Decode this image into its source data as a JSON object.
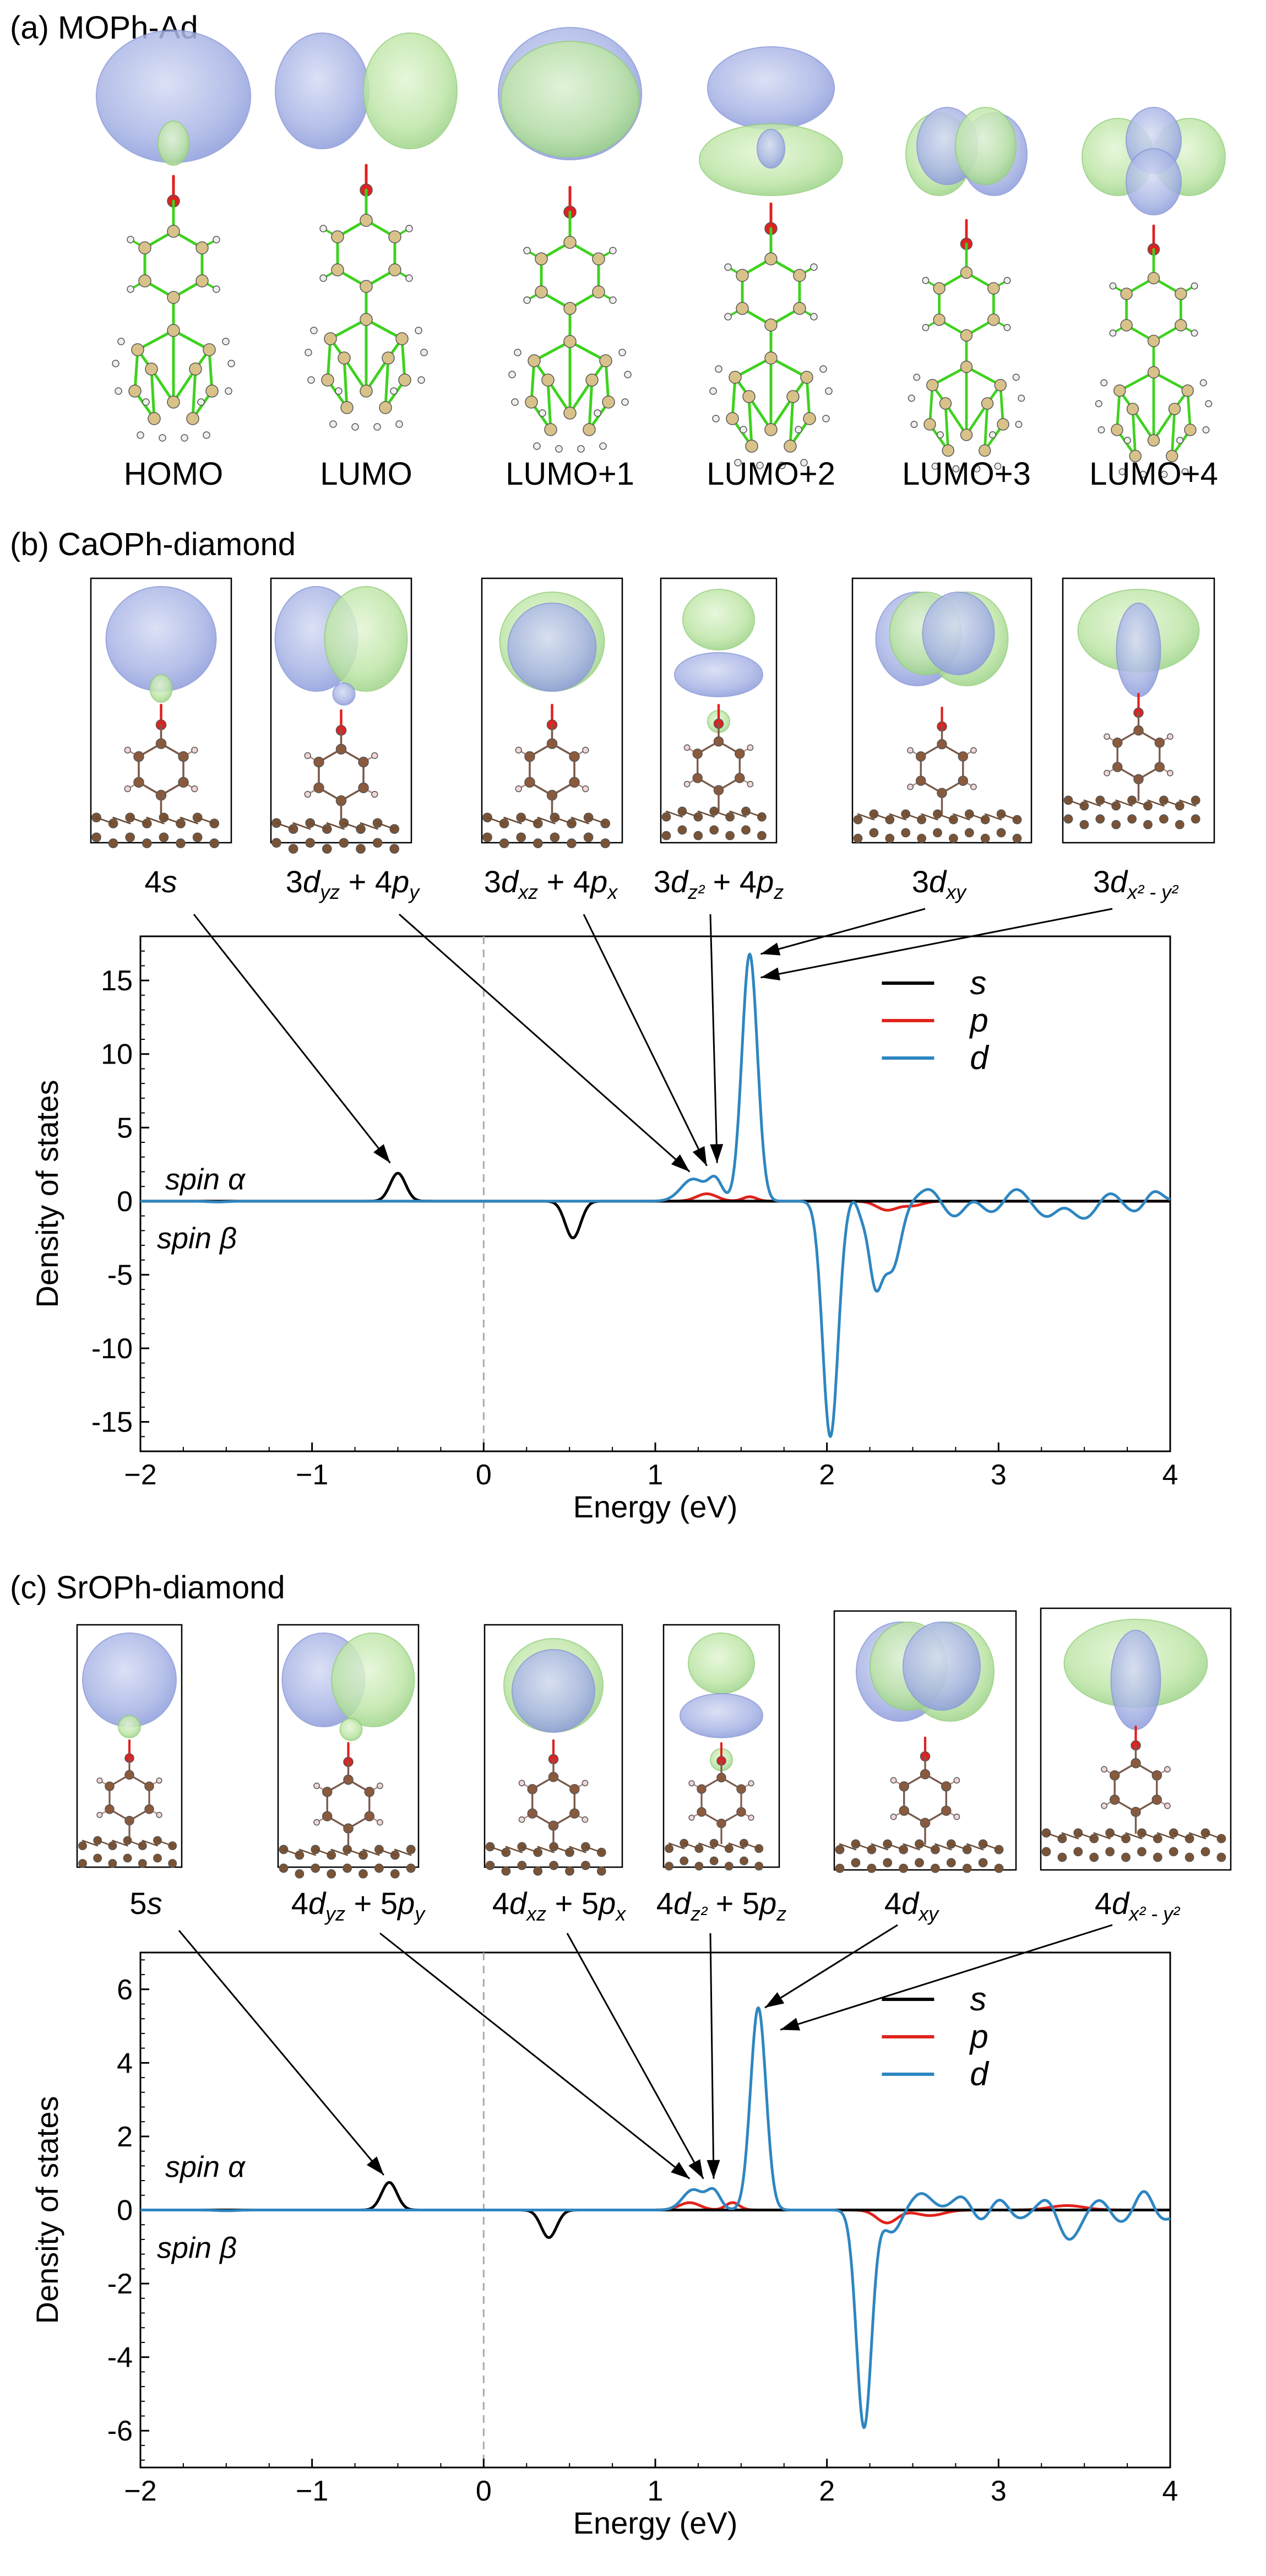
{
  "panel_a": {
    "title": "(a) MOPh-Ad",
    "labels": [
      "HOMO",
      "LUMO",
      "LUMO+1",
      "LUMO+2",
      "LUMO+3",
      "LUMO+4"
    ]
  },
  "panel_b": {
    "title": "(b) CaOPh-diamond",
    "labels": [
      {
        "main": "4",
        "sym": "s",
        "tail": ""
      },
      {
        "main": "3",
        "sym": "d",
        "sub": "yz",
        "plus": " + 4",
        "sym2": "p",
        "sub2": "y"
      },
      {
        "main": "3",
        "sym": "d",
        "sub": "xz",
        "plus": " + 4",
        "sym2": "p",
        "sub2": "x"
      },
      {
        "main": "3",
        "sym": "d",
        "sub": "z²",
        "plus": " + 4",
        "sym2": "p",
        "sub2": "z"
      },
      {
        "main": "3",
        "sym": "d",
        "sub": "xy"
      },
      {
        "main": "3",
        "sym": "d",
        "sub": "x² - y²"
      }
    ]
  },
  "panel_c": {
    "title": "(c) SrOPh-diamond",
    "labels": [
      {
        "main": "5",
        "sym": "s"
      },
      {
        "main": "4",
        "sym": "d",
        "sub": "yz",
        "plus": " + 5",
        "sym2": "p",
        "sub2": "y"
      },
      {
        "main": "4",
        "sym": "d",
        "sub": "xz",
        "plus": " + 5",
        "sym2": "p",
        "sub2": "x"
      },
      {
        "main": "4",
        "sym": "d",
        "sub": "z²",
        "plus": " + 5",
        "sym2": "p",
        "sub2": "z"
      },
      {
        "main": "4",
        "sym": "d",
        "sub": "xy"
      },
      {
        "main": "4",
        "sym": "d",
        "sub": "x² - y²"
      }
    ]
  },
  "chart_data": [
    {
      "type": "line",
      "xlabel": "Energy (eV)",
      "ylabel": "Density of states",
      "xlim": [
        -2,
        4
      ],
      "ylim": [
        -17,
        18
      ],
      "xticks": [
        -2,
        -1,
        0,
        1,
        2,
        3,
        4
      ],
      "yticks": [
        -15,
        -10,
        -5,
        0,
        5,
        10,
        15
      ],
      "ytick_labels": [
        "-15",
        "-10",
        "-5",
        "0",
        "5",
        "10",
        "15"
      ],
      "xtick_labels": [
        "−2",
        "−1",
        "0",
        "1",
        "2",
        "3",
        "4"
      ],
      "annotations": [
        "spin α",
        "spin β"
      ],
      "legend": [
        "s",
        "p",
        "d"
      ],
      "colors": {
        "s": "#000000",
        "p": "#e0231c",
        "d": "#2e86c1"
      },
      "series": [
        {
          "name": "s",
          "peaks": [
            [
              -0.5,
              1.9,
              0.045
            ],
            [
              0.52,
              -2.5,
              0.045
            ]
          ]
        },
        {
          "name": "p",
          "peaks": [
            [
              1.3,
              0.5,
              0.06
            ],
            [
              1.55,
              0.3,
              0.04
            ],
            [
              2.35,
              -0.6,
              0.06
            ],
            [
              2.5,
              -0.3,
              0.06
            ]
          ]
        },
        {
          "name": "d",
          "peaks": [
            [
              -1.55,
              -0.2,
              0.06
            ],
            [
              -1.55,
              0.15,
              0.06
            ],
            [
              1.22,
              1.5,
              0.07
            ],
            [
              1.35,
              1.4,
              0.04
            ],
            [
              1.55,
              16.8,
              0.045
            ],
            [
              2.02,
              -16.0,
              0.045
            ],
            [
              2.2,
              1.5,
              0.04
            ],
            [
              2.2,
              -2.0,
              0.03
            ],
            [
              2.28,
              -5.5,
              0.04
            ],
            [
              2.38,
              -4.5,
              0.05
            ],
            [
              2.6,
              0.9,
              0.06
            ],
            [
              2.85,
              0.7,
              0.06
            ],
            [
              3.1,
              0.9,
              0.06
            ],
            [
              3.35,
              0.6,
              0.06
            ],
            [
              3.65,
              0.7,
              0.06
            ],
            [
              3.9,
              0.9,
              0.05
            ],
            [
              2.75,
              -1.2,
              0.07
            ],
            [
              2.95,
              -0.9,
              0.07
            ],
            [
              3.3,
              -1.4,
              0.07
            ],
            [
              3.5,
              -1.2,
              0.07
            ],
            [
              3.8,
              -0.8,
              0.07
            ]
          ]
        }
      ]
    },
    {
      "type": "line",
      "xlabel": "Energy (eV)",
      "ylabel": "Density of states",
      "xlim": [
        -2,
        4
      ],
      "ylim": [
        -7,
        7
      ],
      "xticks": [
        -2,
        -1,
        0,
        1,
        2,
        3,
        4
      ],
      "yticks": [
        -6,
        -4,
        -2,
        0,
        2,
        4,
        6
      ],
      "ytick_labels": [
        "-6",
        "-4",
        "-2",
        "0",
        "2",
        "4",
        "6"
      ],
      "xtick_labels": [
        "−2",
        "−1",
        "0",
        "1",
        "2",
        "3",
        "4"
      ],
      "annotations": [
        "spin α",
        "spin β"
      ],
      "legend": [
        "s",
        "p",
        "d"
      ],
      "colors": {
        "s": "#000000",
        "p": "#e0231c",
        "d": "#2e86c1"
      },
      "series": [
        {
          "name": "s",
          "peaks": [
            [
              -0.55,
              0.75,
              0.045
            ],
            [
              0.38,
              -0.75,
              0.045
            ]
          ]
        },
        {
          "name": "p",
          "peaks": [
            [
              1.2,
              0.2,
              0.06
            ],
            [
              1.45,
              0.2,
              0.04
            ],
            [
              2.35,
              -0.35,
              0.06
            ],
            [
              2.6,
              -0.15,
              0.08
            ],
            [
              3.4,
              0.12,
              0.1
            ]
          ]
        },
        {
          "name": "d",
          "peaks": [
            [
              -1.5,
              -0.08,
              0.06
            ],
            [
              -1.5,
              0.06,
              0.06
            ],
            [
              1.22,
              0.55,
              0.06
            ],
            [
              1.34,
              0.5,
              0.04
            ],
            [
              1.6,
              5.5,
              0.045
            ],
            [
              2.22,
              -6.5,
              0.045
            ],
            [
              2.25,
              0.8,
              0.04
            ],
            [
              2.38,
              -0.6,
              0.05
            ],
            [
              2.55,
              0.45,
              0.06
            ],
            [
              2.8,
              0.5,
              0.06
            ],
            [
              3.0,
              0.55,
              0.06
            ],
            [
              3.3,
              0.5,
              0.06
            ],
            [
              3.6,
              0.4,
              0.06
            ],
            [
              3.85,
              0.65,
              0.05
            ],
            [
              2.9,
              -0.5,
              0.07
            ],
            [
              3.1,
              -0.3,
              0.07
            ],
            [
              3.4,
              -0.9,
              0.07
            ],
            [
              3.7,
              -0.4,
              0.07
            ],
            [
              3.95,
              -0.3,
              0.07
            ]
          ]
        }
      ]
    }
  ]
}
